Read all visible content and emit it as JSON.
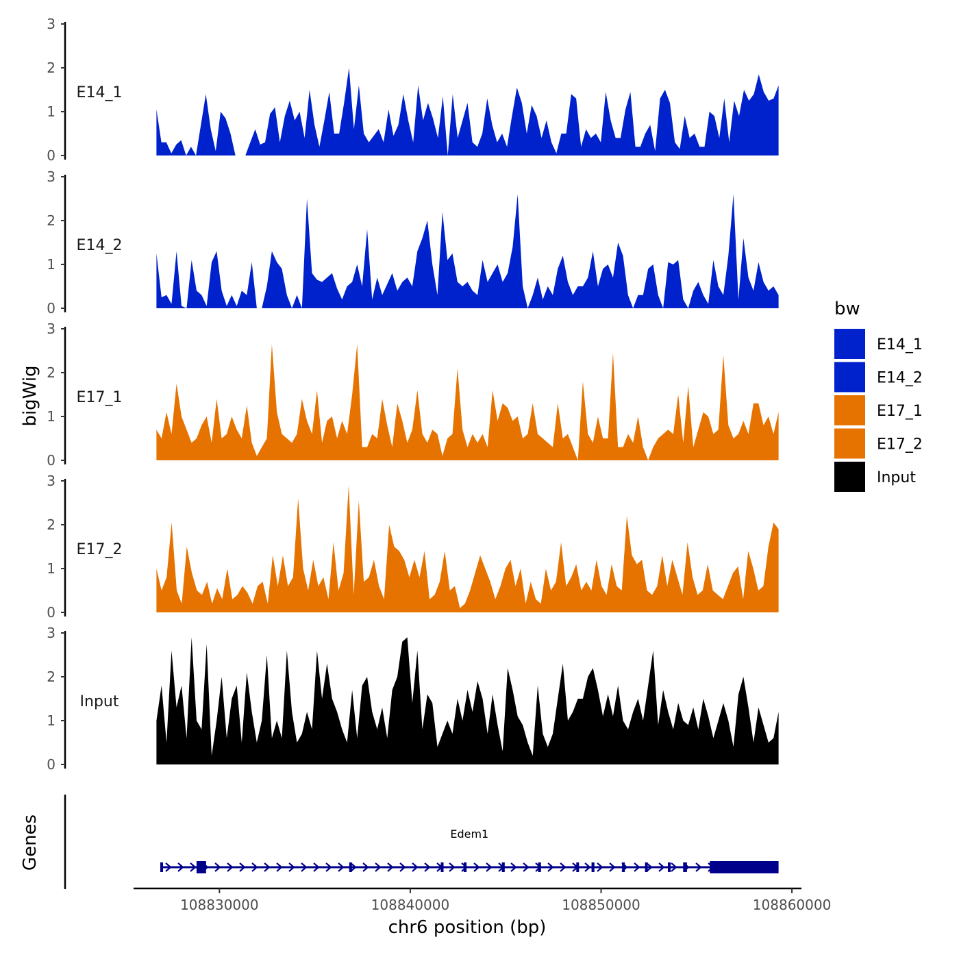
{
  "chart_data": {
    "type": "area",
    "chromosome": "chr6",
    "xlabel": "chr6 position (bp)",
    "ylabel": "bigWig",
    "genes_label": "Genes",
    "x_ticks": [
      108830000,
      108840000,
      108850000,
      108860000
    ],
    "x_range": [
      108825500,
      108860500
    ],
    "y_ticks": [
      0,
      1,
      2,
      3
    ],
    "ylim": [
      0,
      3
    ],
    "region": [
      108826700,
      108859300
    ],
    "legend": {
      "title": "bw",
      "position": "right",
      "entries": [
        {
          "name": "E14_1",
          "color": "#0022CC"
        },
        {
          "name": "E14_2",
          "color": "#0022CC"
        },
        {
          "name": "E17_1",
          "color": "#E67300"
        },
        {
          "name": "E17_2",
          "color": "#E67300"
        },
        {
          "name": "Input",
          "color": "#000000"
        }
      ]
    },
    "series": [
      {
        "name": "E14_1",
        "color": "#0022CC",
        "values": [
          1.05,
          0.3,
          0.3,
          0.05,
          0.25,
          0.35,
          0,
          0.2,
          0,
          0.7,
          1.4,
          0.6,
          0.1,
          1.0,
          0.85,
          0.5,
          0,
          0,
          0,
          0.3,
          0.6,
          0.25,
          0.3,
          0.95,
          1.1,
          0.3,
          0.9,
          1.25,
          0.8,
          1.0,
          0.4,
          1.5,
          0.7,
          0.2,
          0.8,
          1.45,
          0.5,
          0.5,
          1.2,
          2.0,
          0.6,
          1.6,
          0.5,
          0.3,
          0.45,
          0.6,
          0.3,
          1.05,
          0.45,
          0.7,
          1.4,
          0.8,
          0.3,
          1.6,
          0.8,
          1.2,
          0.85,
          0.4,
          1.35,
          0,
          1.4,
          0.4,
          0.8,
          1.2,
          0.3,
          0.2,
          0.5,
          1.3,
          0.7,
          0.3,
          0.5,
          0.2,
          0.9,
          1.55,
          1.2,
          0.5,
          1.15,
          0.9,
          0.4,
          0.8,
          0.3,
          0.05,
          0.5,
          0.5,
          1.4,
          1.3,
          0.2,
          0.6,
          0.4,
          0.5,
          0.3,
          1.45,
          0.8,
          0.4,
          0.4,
          1.05,
          1.45,
          0.2,
          0.2,
          0.5,
          0.7,
          0.1,
          1.3,
          1.5,
          1.2,
          0.3,
          0.15,
          0.9,
          0.4,
          0.5,
          0.2,
          0.2,
          1.0,
          0.9,
          0.4,
          1.3,
          0.3,
          1.25,
          0.9,
          1.5,
          1.25,
          1.4,
          1.85,
          1.45,
          1.25,
          1.3,
          1.6
        ]
      },
      {
        "name": "E14_2",
        "color": "#0022CC",
        "values": [
          1.25,
          0.25,
          0.3,
          0.1,
          1.3,
          0.05,
          0,
          1.1,
          0.4,
          0.3,
          0.05,
          1.05,
          1.3,
          0.4,
          0.05,
          0.3,
          0.05,
          0.4,
          0.3,
          1.05,
          0,
          0,
          0.5,
          1.3,
          1.05,
          0.9,
          0.3,
          0,
          0.3,
          0,
          2.5,
          0.8,
          0.65,
          0.6,
          0.7,
          0.8,
          0.45,
          0.2,
          0.5,
          0.6,
          1.0,
          0.5,
          1.8,
          0.2,
          0.7,
          0.3,
          0.55,
          0.8,
          0.4,
          0.6,
          0.7,
          0.5,
          1.3,
          1.6,
          2.0,
          1.0,
          0.3,
          2.2,
          1.1,
          1.25,
          0.6,
          0.5,
          0.6,
          0.4,
          0.3,
          1.1,
          0.6,
          0.8,
          1.0,
          0.6,
          0.8,
          1.4,
          2.6,
          0.5,
          0,
          0.3,
          0.7,
          0.2,
          0.5,
          0.3,
          0.9,
          1.2,
          0.6,
          0.3,
          0.5,
          0.5,
          0.7,
          1.3,
          0.5,
          0.9,
          1.0,
          0.7,
          1.5,
          1.2,
          0.3,
          0,
          0.3,
          0.3,
          0.9,
          1.0,
          0.3,
          0,
          1.05,
          1.0,
          1.1,
          0.2,
          0,
          0.4,
          0.6,
          0.3,
          0.1,
          1.1,
          0.5,
          0.3,
          1.2,
          2.6,
          0.2,
          1.6,
          0.7,
          0.4,
          1.05,
          0.6,
          0.4,
          0.5,
          0.3
        ]
      },
      {
        "name": "E17_1",
        "color": "#E67300",
        "values": [
          0.7,
          0.5,
          1.1,
          0.6,
          1.75,
          1.0,
          0.7,
          0.4,
          0.5,
          0.8,
          1.0,
          0.4,
          1.4,
          0.5,
          0.6,
          1.0,
          0.7,
          0.5,
          1.25,
          0.4,
          0.1,
          0.3,
          0.5,
          2.65,
          1.1,
          0.6,
          0.5,
          0.4,
          0.6,
          1.4,
          0.9,
          0.6,
          1.6,
          0.4,
          0.9,
          1.0,
          0.5,
          0.9,
          0.6,
          1.5,
          2.65,
          0.3,
          0.3,
          0.6,
          0.5,
          1.4,
          0.8,
          0.3,
          1.3,
          0.9,
          0.4,
          0.7,
          1.6,
          0.6,
          0.4,
          0.7,
          0.6,
          0.1,
          0.5,
          0.6,
          2.1,
          0.7,
          0.3,
          0.6,
          0.4,
          0.6,
          0.3,
          1.6,
          0.9,
          1.3,
          1.2,
          0.9,
          1.0,
          0.5,
          0.6,
          1.3,
          0.6,
          0.5,
          0.4,
          0.3,
          1.3,
          0.5,
          0.6,
          0.3,
          0,
          1.8,
          0.6,
          0.4,
          1.0,
          0.5,
          0.5,
          2.45,
          0.3,
          0.3,
          0.6,
          0.4,
          1.0,
          0.3,
          0,
          0.3,
          0.5,
          0.6,
          0.7,
          0.6,
          1.5,
          0.4,
          1.7,
          0.3,
          0.7,
          1.1,
          1.0,
          0.6,
          0.7,
          2.4,
          0.8,
          0.5,
          0.6,
          0.9,
          0.6,
          1.3,
          1.3,
          0.8,
          1.0,
          0.6,
          1.1
        ]
      },
      {
        "name": "E17_2",
        "color": "#E67300",
        "values": [
          1.0,
          0.5,
          0.8,
          2.05,
          0.5,
          0.2,
          1.5,
          0.9,
          0.5,
          0.4,
          0.7,
          0.2,
          0.55,
          0.3,
          1.0,
          0.3,
          0.4,
          0.6,
          0.45,
          0.2,
          0.6,
          0.7,
          0.2,
          1.3,
          0.6,
          1.3,
          0.6,
          0.8,
          2.6,
          1.0,
          0.5,
          1.2,
          0.6,
          0.8,
          0.3,
          1.6,
          0.5,
          0.9,
          2.9,
          0.4,
          2.55,
          0.7,
          0.8,
          1.2,
          0.6,
          0.3,
          2.0,
          1.5,
          1.4,
          1.2,
          0.8,
          1.2,
          0.8,
          1.4,
          0.3,
          0.4,
          0.7,
          1.4,
          0.5,
          0.6,
          0.1,
          0.2,
          0.5,
          0.9,
          1.3,
          1.0,
          0.7,
          0.3,
          0.6,
          1.0,
          1.2,
          0.6,
          1.0,
          0.2,
          0.7,
          0.3,
          0.2,
          1.0,
          0.5,
          0.7,
          1.6,
          0.6,
          0.8,
          1.1,
          0.5,
          0.7,
          0.5,
          1.2,
          0.6,
          0.4,
          1.1,
          0.6,
          0.5,
          2.2,
          1.3,
          1.1,
          1.2,
          0.5,
          0.4,
          0.6,
          1.3,
          0.6,
          1.2,
          0.8,
          0.4,
          1.6,
          0.8,
          0.4,
          0.5,
          1.1,
          0.5,
          0.4,
          0.3,
          0.6,
          0.9,
          1.05,
          0.3,
          1.4,
          1.0,
          0.5,
          0.6,
          1.5,
          2.05,
          1.9
        ]
      },
      {
        "name": "Input",
        "color": "#000000",
        "values": [
          1.0,
          1.8,
          0.5,
          2.6,
          1.3,
          1.8,
          0.6,
          2.9,
          1.0,
          0.8,
          2.75,
          0.2,
          1.0,
          2.0,
          0.6,
          1.5,
          1.8,
          0.5,
          2.1,
          1.2,
          0.5,
          1.0,
          2.5,
          0.6,
          1.0,
          0.6,
          2.6,
          1.2,
          0.5,
          0.7,
          1.2,
          0.8,
          2.6,
          1.5,
          2.3,
          1.5,
          1.2,
          0.8,
          0.5,
          1.7,
          0.6,
          1.8,
          2.0,
          1.2,
          0.8,
          1.3,
          0.6,
          1.7,
          2.0,
          2.8,
          2.9,
          1.4,
          2.6,
          0.8,
          1.6,
          1.4,
          0.4,
          0.7,
          1.0,
          0.7,
          1.5,
          1.0,
          1.7,
          1.2,
          1.9,
          1.5,
          0.7,
          1.6,
          0.9,
          0.3,
          2.2,
          1.7,
          1.1,
          0.9,
          0.5,
          0.2,
          1.8,
          0.7,
          0.4,
          0.7,
          1.5,
          2.3,
          1.0,
          1.2,
          1.5,
          1.5,
          2.0,
          2.2,
          1.7,
          1.1,
          1.6,
          1.1,
          1.8,
          1.0,
          0.8,
          1.2,
          1.5,
          1.0,
          1.8,
          2.6,
          0.9,
          1.7,
          1.2,
          0.8,
          1.4,
          1.0,
          0.9,
          1.3,
          0.8,
          1.5,
          1.1,
          0.6,
          1.0,
          1.4,
          1.0,
          0.4,
          1.6,
          2.0,
          1.3,
          0.5,
          1.3,
          0.9,
          0.5,
          0.6,
          1.2
        ]
      }
    ],
    "genes": [
      {
        "name": "Edem1",
        "strand": "+",
        "start": 108826900,
        "end": 108859300,
        "exons": [
          [
            108826900,
            108827000
          ],
          [
            108828800,
            108829300
          ],
          [
            108836800,
            108836850
          ],
          [
            108841600,
            108841700
          ],
          [
            108842800,
            108842950
          ],
          [
            108844800,
            108844950
          ],
          [
            108846700,
            108846850
          ],
          [
            108848700,
            108848800
          ],
          [
            108849500,
            108849650
          ],
          [
            108851100,
            108851200
          ],
          [
            108852300,
            108852400
          ],
          [
            108853500,
            108853600
          ],
          [
            108854300,
            108854500
          ],
          [
            108855700,
            108859300
          ]
        ]
      }
    ]
  }
}
